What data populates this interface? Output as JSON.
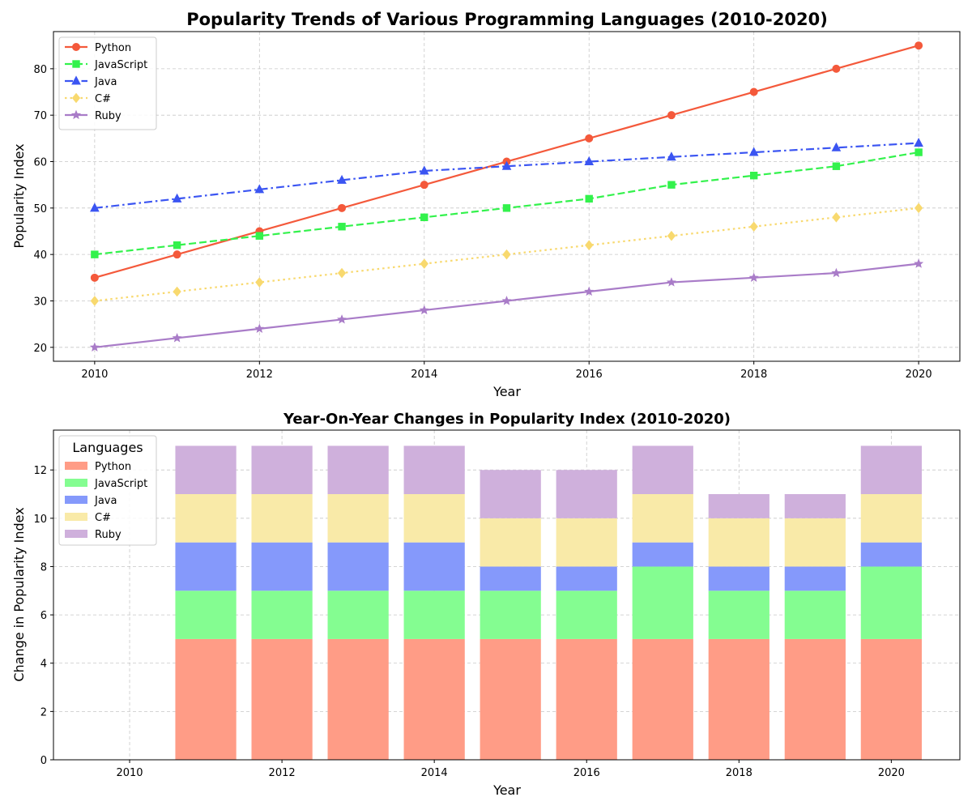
{
  "chart_data": [
    {
      "type": "line",
      "title": "Popularity Trends of Various Programming Languages (2010-2020)",
      "xlabel": "Year",
      "ylabel": "Popularity Index",
      "x": [
        2010,
        2011,
        2012,
        2013,
        2014,
        2015,
        2016,
        2017,
        2018,
        2019,
        2020
      ],
      "xlim": [
        2009.5,
        2020.5
      ],
      "ylim": [
        17,
        88
      ],
      "xticks": [
        2010,
        2012,
        2014,
        2016,
        2018,
        2020
      ],
      "yticks": [
        20,
        30,
        40,
        50,
        60,
        70,
        80
      ],
      "grid": true,
      "legend_position": "top-left",
      "series": [
        {
          "name": "Python",
          "color": "#f4593b",
          "marker": "circle",
          "linestyle": "solid",
          "values": [
            35,
            40,
            45,
            50,
            55,
            60,
            65,
            70,
            75,
            80,
            85
          ]
        },
        {
          "name": "JavaScript",
          "color": "#33f24c",
          "marker": "square",
          "linestyle": "dashed",
          "values": [
            40,
            42,
            44,
            46,
            48,
            50,
            52,
            55,
            57,
            59,
            62
          ]
        },
        {
          "name": "Java",
          "color": "#3b55f2",
          "marker": "triangle",
          "linestyle": "dashdot",
          "values": [
            50,
            52,
            54,
            56,
            58,
            59,
            60,
            61,
            62,
            63,
            64
          ]
        },
        {
          "name": "C#",
          "color": "#f8d96f",
          "marker": "diamond",
          "linestyle": "dotted",
          "values": [
            30,
            32,
            34,
            36,
            38,
            40,
            42,
            44,
            46,
            48,
            50
          ]
        },
        {
          "name": "Ruby",
          "color": "#a97cc8",
          "marker": "star",
          "linestyle": "solid",
          "values": [
            20,
            22,
            24,
            26,
            28,
            30,
            32,
            34,
            35,
            36,
            38
          ]
        }
      ]
    },
    {
      "type": "bar",
      "stacked": true,
      "title": "Year-On-Year Changes in Popularity Index (2010-2020)",
      "xlabel": "Year",
      "ylabel": "Change in Popularity Index",
      "x": [
        2010,
        2011,
        2012,
        2013,
        2014,
        2015,
        2016,
        2017,
        2018,
        2019,
        2020
      ],
      "xlim": [
        2009,
        2020.9
      ],
      "ylim": [
        0,
        13.65
      ],
      "xticks": [
        2010,
        2012,
        2014,
        2016,
        2018,
        2020
      ],
      "yticks": [
        0,
        2,
        4,
        6,
        8,
        10,
        12
      ],
      "grid": true,
      "legend_title": "Languages",
      "legend_position": "top-left",
      "series": [
        {
          "name": "Python",
          "color": "#ff9c86",
          "values": [
            0,
            5,
            5,
            5,
            5,
            5,
            5,
            5,
            5,
            5,
            5
          ]
        },
        {
          "name": "JavaScript",
          "color": "#84fd91",
          "values": [
            0,
            2,
            2,
            2,
            2,
            2,
            2,
            3,
            2,
            2,
            3
          ]
        },
        {
          "name": "Java",
          "color": "#8599fb",
          "values": [
            0,
            2,
            2,
            2,
            2,
            1,
            1,
            1,
            1,
            1,
            1
          ]
        },
        {
          "name": "C#",
          "color": "#f9eaa8",
          "values": [
            0,
            2,
            2,
            2,
            2,
            2,
            2,
            2,
            2,
            2,
            2
          ]
        },
        {
          "name": "Ruby",
          "color": "#cfb0dc",
          "values": [
            0,
            2,
            2,
            2,
            2,
            2,
            2,
            2,
            1,
            1,
            2
          ]
        }
      ]
    }
  ]
}
